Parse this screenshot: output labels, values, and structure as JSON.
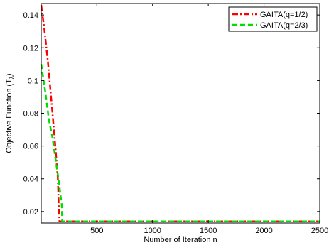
{
  "chart_data": {
    "type": "line",
    "xlabel": "Number of Iteration n",
    "ylabel": {
      "main": "Objective Function (T",
      "sub": "λ",
      "close": ")"
    },
    "xlim": [
      1,
      2500
    ],
    "ylim": [
      0.013,
      0.147
    ],
    "xticks": [
      500,
      1000,
      1500,
      2000,
      2500
    ],
    "yticks": [
      0.02,
      0.04,
      0.06,
      0.08,
      0.1,
      0.12,
      0.14
    ],
    "ytick_labels": [
      "0.02",
      "0.04",
      "0.06",
      "0.08",
      "0.1",
      "0.12",
      "0.14"
    ],
    "grid": false,
    "legend_position": "top-right",
    "series": [
      {
        "name": "GAITA(q=1/2)",
        "color": "#ff0000",
        "dash": "8,3,2,3",
        "points": [
          [
            1,
            0.146
          ],
          [
            30,
            0.131
          ],
          [
            60,
            0.112
          ],
          [
            100,
            0.082
          ],
          [
            130,
            0.058
          ],
          [
            150,
            0.04
          ],
          [
            160,
            0.02
          ],
          [
            165,
            0.014
          ],
          [
            2500,
            0.014
          ]
        ]
      },
      {
        "name": "GAITA(q=2/3)",
        "color": "#00dd00",
        "dash": "7,4",
        "points": [
          [
            1,
            0.11
          ],
          [
            40,
            0.092
          ],
          [
            70,
            0.076
          ],
          [
            100,
            0.066
          ],
          [
            130,
            0.052
          ],
          [
            160,
            0.038
          ],
          [
            185,
            0.024
          ],
          [
            190,
            0.014
          ],
          [
            2500,
            0.014
          ]
        ]
      }
    ]
  }
}
